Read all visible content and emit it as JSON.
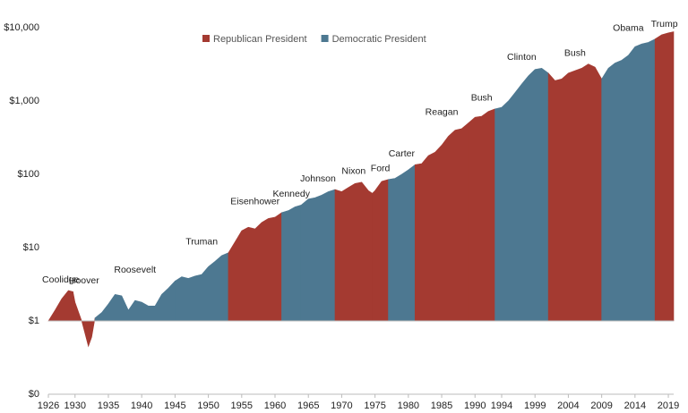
{
  "chart_data": {
    "type": "area",
    "log_scale": true,
    "fill_to": 1,
    "xlim": [
      1926,
      2019.8
    ],
    "ylim": [
      0.1,
      10000
    ],
    "yticks": [
      {
        "value": 0.1,
        "label": "$0"
      },
      {
        "value": 1,
        "label": "$1"
      },
      {
        "value": 10,
        "label": "$10"
      },
      {
        "value": 100,
        "label": "$100"
      },
      {
        "value": 1000,
        "label": "$1,000"
      },
      {
        "value": 10000,
        "label": "$10,000"
      }
    ],
    "xticks": [
      1926,
      1930,
      1935,
      1940,
      1945,
      1950,
      1955,
      1960,
      1965,
      1970,
      1975,
      1980,
      1985,
      1990,
      1994,
      1999,
      2004,
      2009,
      2014,
      2019
    ],
    "legend": [
      {
        "name": "Republican President",
        "color": "#a43a31"
      },
      {
        "name": "Democratic President",
        "color": "#4d7891"
      }
    ],
    "series": [
      {
        "name": "Coolidge",
        "color": "#a43a31",
        "x": [
          1926,
          1927,
          1928,
          1929,
          1929.7
        ],
        "values": [
          1.0,
          1.4,
          2.0,
          2.6,
          2.5
        ]
      },
      {
        "name": "Hoover",
        "color": "#a43a31",
        "x": [
          1929.7,
          1930,
          1931,
          1932,
          1932.5,
          1933
        ],
        "values": [
          2.5,
          1.8,
          1.0,
          0.45,
          0.6,
          1.1
        ]
      },
      {
        "name": "Roosevelt",
        "color": "#4d7891",
        "x": [
          1933,
          1934,
          1935,
          1936,
          1937,
          1938,
          1939,
          1940,
          1941,
          1942,
          1943,
          1944,
          1945
        ],
        "values": [
          1.1,
          1.3,
          1.7,
          2.3,
          2.2,
          1.4,
          1.9,
          1.8,
          1.6,
          1.6,
          2.3,
          2.8,
          3.5
        ]
      },
      {
        "name": "Truman",
        "color": "#4d7891",
        "x": [
          1945,
          1946,
          1947,
          1948,
          1949,
          1950,
          1951,
          1952,
          1953
        ],
        "values": [
          3.5,
          4.0,
          3.8,
          4.1,
          4.3,
          5.5,
          6.5,
          7.8,
          8.5
        ]
      },
      {
        "name": "Eisenhower",
        "color": "#a43a31",
        "x": [
          1953,
          1954,
          1955,
          1956,
          1957,
          1958,
          1959,
          1960,
          1961
        ],
        "values": [
          8.5,
          12,
          17,
          19,
          18,
          22,
          25,
          26,
          30
        ]
      },
      {
        "name": "Kennedy",
        "color": "#4d7891",
        "x": [
          1961,
          1962,
          1963,
          1963.9
        ],
        "values": [
          30,
          32,
          36,
          38
        ]
      },
      {
        "name": "Johnson",
        "color": "#4d7891",
        "x": [
          1963.9,
          1965,
          1966,
          1967,
          1968,
          1969
        ],
        "values": [
          38,
          46,
          48,
          52,
          58,
          62
        ]
      },
      {
        "name": "Nixon",
        "color": "#a43a31",
        "x": [
          1969,
          1970,
          1971,
          1972,
          1973,
          1974,
          1974.6
        ],
        "values": [
          62,
          58,
          66,
          75,
          78,
          60,
          55
        ]
      },
      {
        "name": "Ford",
        "color": "#a43a31",
        "x": [
          1974.6,
          1975,
          1976,
          1977
        ],
        "values": [
          55,
          60,
          80,
          85
        ]
      },
      {
        "name": "Carter",
        "color": "#4d7891",
        "x": [
          1977,
          1978,
          1979,
          1980,
          1981
        ],
        "values": [
          85,
          88,
          100,
          115,
          135
        ]
      },
      {
        "name": "Reagan",
        "color": "#a43a31",
        "x": [
          1981,
          1982,
          1983,
          1984,
          1985,
          1986,
          1987,
          1988,
          1989
        ],
        "values": [
          135,
          140,
          180,
          200,
          250,
          330,
          400,
          420,
          500
        ]
      },
      {
        "name": "Bush",
        "color": "#a43a31",
        "x": [
          1989,
          1990,
          1991,
          1992,
          1993
        ],
        "values": [
          500,
          600,
          620,
          720,
          780
        ]
      },
      {
        "name": "Clinton",
        "color": "#4d7891",
        "x": [
          1993,
          1994,
          1995,
          1996,
          1997,
          1998,
          1999,
          2000,
          2001
        ],
        "values": [
          780,
          820,
          1000,
          1300,
          1700,
          2200,
          2700,
          2800,
          2400
        ]
      },
      {
        "name": "Bush",
        "color": "#a43a31",
        "x": [
          2001,
          2002,
          2003,
          2004,
          2005,
          2006,
          2007,
          2008,
          2009
        ],
        "values": [
          2400,
          1900,
          2000,
          2400,
          2600,
          2800,
          3200,
          2900,
          2000
        ]
      },
      {
        "name": "Obama",
        "color": "#4d7891",
        "x": [
          2009,
          2010,
          2011,
          2012,
          2013,
          2014,
          2015,
          2016,
          2017
        ],
        "values": [
          2000,
          2800,
          3300,
          3600,
          4200,
          5500,
          6000,
          6300,
          7000
        ]
      },
      {
        "name": "Trump",
        "color": "#a43a31",
        "x": [
          2017,
          2018,
          2019,
          2019.8
        ],
        "values": [
          7000,
          8000,
          8500,
          8800
        ]
      }
    ]
  }
}
